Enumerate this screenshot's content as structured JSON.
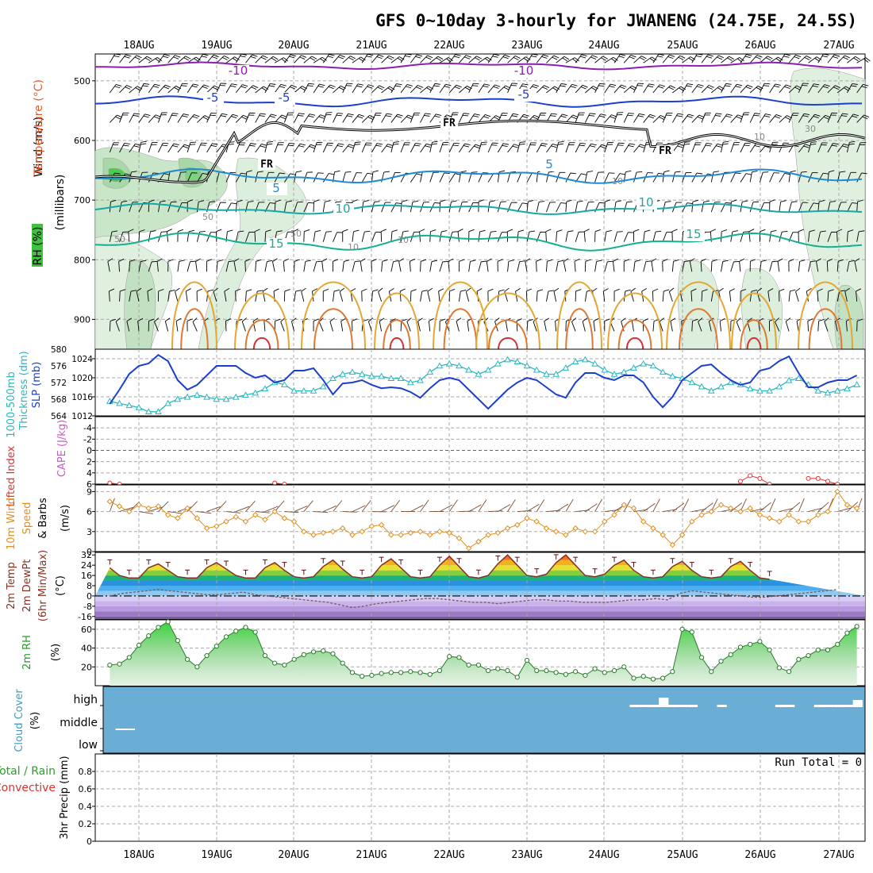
{
  "title": "GFS 0~10day 3-hourly for JWANENG (24.75E, 24.5S)",
  "x_labels": [
    "18AUG",
    "19AUG",
    "20AUG",
    "21AUG",
    "22AUG",
    "23AUG",
    "24AUG",
    "25AUG",
    "26AUG",
    "27AUG"
  ],
  "colors": {
    "wind_label": "#000000",
    "temp_label": "#e85a2a",
    "rh_label": "#2aa02a",
    "slp": "#1a3fcf",
    "thickness": "#28b8c0",
    "lifted": "#e03030",
    "cape": "#c060c0",
    "wind10m": "#e09020",
    "temp_line": "#8a3020",
    "rh2m": "#2a9a2a",
    "cloud_bg": "#6aaed6",
    "cloud_label": "#3aa0c0",
    "precip_total": "#2aa02a",
    "precip_conv": "#e03030"
  },
  "panels": {
    "upper": {
      "ylabel_wind": "Wind (m/s)",
      "ylabel_temp": "Temperature (°C)",
      "ylabel_rh": "RH (%)",
      "ylabel_p": "(millibars)",
      "yticks": [
        "500",
        "600",
        "700",
        "800",
        "900"
      ],
      "temp_labels": [
        "-10",
        "-10",
        "-5",
        "-5",
        "-5",
        "5",
        "5",
        "10",
        "10",
        "15",
        "15"
      ],
      "fr_labels": [
        "FR",
        "FR",
        "FR"
      ],
      "rh_labels": [
        "50",
        "50",
        "50",
        "10",
        "10",
        "10",
        "30",
        "10"
      ]
    },
    "slp": {
      "ylabel_left": "1000-500mb",
      "ylabel_left2": "Thickness (dm)",
      "ylabel_right": "SLP (mb)",
      "yticks_left": [
        "580",
        "576",
        "572",
        "568",
        "564"
      ],
      "yticks_right": [
        "1024",
        "1020",
        "1016",
        "1012"
      ]
    },
    "cape": {
      "ylabel_left": "Lifted Index",
      "ylabel_right": "CAPE (J/kg)",
      "yticks": [
        "-4",
        "-2",
        "0",
        "2",
        "4",
        "6"
      ]
    },
    "wind": {
      "ylabel_1": "10m Wind",
      "ylabel_2": "Speed",
      "ylabel_3": "& Barbs",
      "ylabel_unit": "(m/s)",
      "yticks": [
        "9",
        "6",
        "3",
        "0"
      ]
    },
    "temp": {
      "ylabel_1": "2m Temp",
      "ylabel_2": "2m DewPt",
      "ylabel_3": "(6hr Min/Max)",
      "ylabel_unit": "(°C)",
      "yticks": [
        "32",
        "24",
        "16",
        "8",
        "0",
        "-8",
        "-16"
      ]
    },
    "rh": {
      "ylabel": "2m RH",
      "ylabel_unit": "(%)",
      "yticks": [
        "60",
        "40",
        "20"
      ]
    },
    "cloud": {
      "ylabel": "Cloud Cover",
      "ylabel_unit": "(%)",
      "levels": [
        "high",
        "middle",
        "low"
      ]
    },
    "precip": {
      "ylabel_1": "Total / Rain",
      "ylabel_2": "Convective",
      "ylabel_3": "3hr Precip (mm)",
      "yticks": [
        "0.8",
        "0.6",
        "0.4",
        "0.2",
        "0"
      ],
      "run_total": "Run Total = 0"
    }
  },
  "chart_data": [
    {
      "type": "line",
      "name": "SLP / thickness",
      "x": [
        "17AUG15",
        "17AUG18",
        "17AUG21",
        "18AUG00",
        "18AUG03",
        "18AUG06",
        "18AUG09",
        "18AUG12",
        "18AUG15",
        "18AUG18",
        "18AUG21",
        "19AUG00",
        "19AUG03",
        "19AUG06",
        "19AUG09",
        "19AUG12",
        "19AUG15",
        "19AUG18",
        "19AUG21",
        "20AUG00",
        "20AUG03",
        "20AUG06",
        "20AUG09",
        "20AUG12",
        "20AUG15",
        "20AUG18",
        "20AUG21",
        "21AUG00",
        "21AUG03",
        "21AUG06",
        "21AUG09",
        "21AUG12",
        "21AUG15",
        "21AUG18",
        "21AUG21",
        "22AUG00",
        "22AUG03",
        "22AUG06",
        "22AUG09",
        "22AUG12",
        "22AUG15",
        "22AUG18",
        "22AUG21",
        "23AUG00",
        "23AUG03",
        "23AUG06",
        "23AUG09",
        "23AUG12",
        "23AUG15",
        "23AUG18",
        "23AUG21",
        "24AUG00",
        "24AUG03",
        "24AUG06",
        "24AUG09",
        "24AUG12",
        "24AUG15",
        "24AUG18",
        "24AUG21",
        "25AUG00",
        "25AUG03",
        "25AUG06",
        "25AUG09",
        "25AUG12",
        "25AUG15",
        "25AUG18",
        "25AUG21",
        "26AUG00",
        "26AUG03",
        "26AUG06",
        "26AUG09",
        "26AUG12",
        "26AUG15",
        "26AUG18",
        "26AUG21",
        "27AUG00",
        "27AUG03",
        "27AUG06"
      ],
      "series": [
        {
          "name": "SLP (mb)",
          "values": [
            1014.5,
            1017.5,
            1020.8,
            1022.5,
            1023.0,
            1024.8,
            1023.5,
            1019.5,
            1017.5,
            1018.5,
            1020.5,
            1022.5,
            1022.5,
            1022.5,
            1021.0,
            1020.0,
            1020.5,
            1019.0,
            1019.5,
            1021.5,
            1021.5,
            1022.0,
            1019.5,
            1016.5,
            1018.8,
            1019.0,
            1019.5,
            1018.5,
            1017.8,
            1018.0,
            1017.8,
            1017.0,
            1015.8,
            1017.8,
            1019.5,
            1020.0,
            1019.5,
            1017.5,
            1015.5,
            1013.5,
            1015.5,
            1017.5,
            1019.0,
            1020.0,
            1019.5,
            1018.0,
            1016.5,
            1015.8,
            1019.0,
            1021.0,
            1021.0,
            1020.0,
            1019.5,
            1020.5,
            1020.5,
            1019.0,
            1016.0,
            1013.8,
            1016.0,
            1019.5,
            1021.0,
            1022.5,
            1022.8,
            1021.0,
            1019.5,
            1018.5,
            1019.0,
            1021.5,
            1022.0,
            1023.5,
            1024.5,
            1021.0,
            1018.0,
            1018.0,
            1019.0,
            1019.5,
            1019.5,
            1020.5
          ]
        },
        {
          "name": "Thickness (dm)",
          "values": [
            567.5,
            567.0,
            566.5,
            566.0,
            565.0,
            565.0,
            567.0,
            568.0,
            568.5,
            569.0,
            568.5,
            568.0,
            568.0,
            568.5,
            569.0,
            569.5,
            570.5,
            572.0,
            571.5,
            570.0,
            570.0,
            570.0,
            571.0,
            573.0,
            574.0,
            574.5,
            574.0,
            573.5,
            573.5,
            573.0,
            573.0,
            572.0,
            572.5,
            574.5,
            576.0,
            576.5,
            576.0,
            575.0,
            574.0,
            575.0,
            576.5,
            577.5,
            577.0,
            576.0,
            575.0,
            574.0,
            574.0,
            575.5,
            577.0,
            577.5,
            576.5,
            575.0,
            574.0,
            574.5,
            575.5,
            576.5,
            576.0,
            574.5,
            573.5,
            573.0,
            572.0,
            571.0,
            570.0,
            571.0,
            572.0,
            571.5,
            570.5,
            570.0,
            570.0,
            571.0,
            572.5,
            573.0,
            571.5,
            570.0,
            569.5,
            570.0,
            570.5,
            571.5
          ]
        }
      ],
      "ylim_left": [
        564,
        580
      ],
      "ylim_right": [
        1012,
        1026
      ]
    },
    {
      "type": "line",
      "name": "Lifted index",
      "series": [
        {
          "name": "Lifted Index",
          "values": [
            5.8,
            6.0,
            6.0,
            6.0,
            6.0,
            6.0,
            6.0,
            6.0,
            6.0,
            6.0,
            6.0,
            6.0,
            6.0,
            6.0,
            6.0,
            6.0,
            6.0,
            5.8,
            6.0,
            6.0,
            6.0,
            6.0,
            6.0,
            6.0,
            6.0,
            6.0,
            6.0,
            6.0,
            6.0,
            6.0,
            6.0,
            6.0,
            6.0,
            6.0,
            6.0,
            6.0,
            6.0,
            6.0,
            6.0,
            6.0,
            6.0,
            6.0,
            6.0,
            6.0,
            6.0,
            6.0,
            6.0,
            6.0,
            6.0,
            6.0,
            6.0,
            6.0,
            6.0,
            6.0,
            6.0,
            6.0,
            6.0,
            6.0,
            6.0,
            6.0,
            6.0,
            6.0,
            6.0,
            6.0,
            6.0,
            5.5,
            4.5,
            5.0,
            6.0,
            6.0,
            6.0,
            6.0,
            5.0,
            5.0,
            5.5,
            6.0,
            6.0,
            4.5
          ]
        }
      ],
      "ylim": [
        -6,
        6
      ]
    },
    {
      "type": "line",
      "name": "10m wind speed",
      "series": [
        {
          "name": "10m Wind Speed (m/s)",
          "values": [
            7.5,
            6.8,
            6.0,
            7.0,
            6.5,
            6.8,
            5.5,
            5.0,
            6.5,
            5.0,
            3.5,
            3.8,
            4.5,
            5.2,
            4.5,
            5.5,
            4.8,
            6.0,
            5.0,
            4.5,
            3.0,
            2.5,
            2.8,
            3.0,
            3.5,
            2.5,
            3.0,
            3.8,
            4.0,
            2.5,
            2.5,
            2.8,
            3.0,
            2.5,
            3.0,
            2.8,
            2.0,
            0.5,
            1.5,
            2.5,
            2.8,
            3.5,
            4.0,
            5.0,
            4.5,
            3.5,
            3.0,
            2.5,
            3.5,
            3.0,
            3.0,
            4.5,
            5.5,
            7.0,
            6.5,
            4.5,
            3.5,
            2.5,
            1.0,
            2.5,
            4.5,
            5.5,
            6.0,
            7.0,
            6.5,
            6.0,
            6.5,
            5.5,
            5.0,
            4.5,
            5.5,
            4.5,
            4.5,
            5.5,
            6.0,
            9.0,
            7.0,
            6.5,
            5.5,
            5.0,
            5.5,
            6.0,
            6.5
          ]
        }
      ],
      "ylim": [
        0,
        10
      ]
    },
    {
      "type": "area",
      "name": "2m temperature / dewpoint",
      "series": [
        {
          "name": "2m Temp (°C)",
          "values": [
            22,
            16,
            14,
            14,
            22,
            25,
            20,
            15,
            14,
            14,
            22,
            26,
            21,
            16,
            14,
            14,
            22,
            26,
            20,
            15,
            14,
            15,
            23,
            28,
            21,
            15,
            14,
            15,
            24,
            29,
            22,
            15,
            14,
            15,
            24,
            31,
            23,
            15,
            14,
            16,
            25,
            32,
            24,
            16,
            15,
            17,
            26,
            32,
            24,
            16,
            15,
            17,
            24,
            28,
            20,
            15,
            14,
            15,
            23,
            27,
            20,
            15,
            14,
            15,
            23,
            27,
            20,
            14,
            13
          ]
        },
        {
          "name": "2m DewPt (°C)",
          "values": [
            0,
            2,
            3,
            4,
            5,
            4,
            3,
            2,
            1,
            1,
            2,
            3,
            1,
            0,
            -1,
            -2,
            -3,
            -4,
            -5,
            -7,
            -9,
            -8,
            -6,
            -5,
            -4,
            -3,
            -2,
            -2,
            -3,
            -4,
            -5,
            -5,
            -6,
            -5,
            -4,
            -3,
            -3,
            -4,
            -4,
            -5,
            -5,
            -5,
            -4,
            -3,
            -3,
            -2,
            -3,
            2,
            4,
            3,
            2,
            1,
            0,
            -1,
            -1,
            0,
            1,
            2,
            3,
            4,
            5
          ]
        }
      ],
      "ylim": [
        -18,
        34
      ]
    },
    {
      "type": "area",
      "name": "2m relative humidity",
      "series": [
        {
          "name": "2m RH (%)",
          "values": [
            22,
            23,
            30,
            43,
            53,
            62,
            68,
            48,
            28,
            20,
            32,
            42,
            52,
            58,
            62,
            57,
            32,
            24,
            22,
            28,
            33,
            36,
            37,
            34,
            24,
            14,
            10,
            11,
            13,
            14,
            14,
            15,
            14,
            12,
            16,
            31,
            30,
            22,
            22,
            16,
            18,
            16,
            9,
            27,
            16,
            16,
            14,
            12,
            15,
            11,
            18,
            14,
            16,
            20,
            8,
            10,
            7,
            8,
            15,
            60,
            57,
            30,
            15,
            26,
            33,
            41,
            44,
            47,
            38,
            19,
            15,
            28,
            32,
            38,
            38,
            44,
            56,
            63,
            57
          ]
        }
      ],
      "ylim": [
        0,
        70
      ]
    },
    {
      "type": "bar",
      "name": "Cloud cover",
      "series": [
        {
          "name": "high",
          "values": [
            0,
            0,
            0,
            0,
            0,
            0,
            0,
            0,
            0,
            0,
            0,
            0,
            0,
            0,
            0,
            0,
            0,
            0,
            0,
            0,
            0,
            0,
            0,
            0,
            0,
            0,
            0,
            0,
            0,
            0,
            0,
            0,
            0,
            0,
            0,
            0,
            0,
            0,
            0,
            0,
            0,
            0,
            0,
            0,
            0,
            0,
            0,
            0,
            0,
            0,
            0,
            0,
            0,
            0,
            5,
            5,
            5,
            20,
            5,
            5,
            5,
            0,
            0,
            5,
            0,
            0,
            0,
            0,
            0,
            5,
            5,
            0,
            0,
            5,
            5,
            5,
            5,
            15,
            5,
            0,
            8
          ]
        },
        {
          "name": "middle",
          "values": [
            0,
            1,
            5,
            0,
            0,
            0,
            0,
            0,
            0,
            0,
            0,
            0,
            0,
            0,
            0,
            0,
            0,
            0,
            0,
            0,
            0,
            0,
            0,
            0,
            0,
            0,
            0,
            0,
            0,
            0,
            0,
            0,
            0,
            0,
            0,
            0,
            0,
            0,
            0,
            0,
            0,
            0,
            0,
            0,
            0,
            0,
            0,
            0,
            0,
            0,
            0,
            0,
            0,
            0,
            0,
            0,
            0,
            0,
            0,
            0,
            0,
            0,
            0,
            0,
            0,
            0,
            0,
            0,
            0,
            0,
            0,
            0,
            0,
            0,
            0,
            0,
            0,
            0,
            0,
            0
          ]
        },
        {
          "name": "low",
          "values": []
        }
      ]
    },
    {
      "type": "bar",
      "name": "3hr precipitation",
      "series": [
        {
          "name": "Total / Rain",
          "values": []
        },
        {
          "name": "Convective",
          "values": []
        }
      ],
      "ylim": [
        0,
        1
      ]
    }
  ]
}
